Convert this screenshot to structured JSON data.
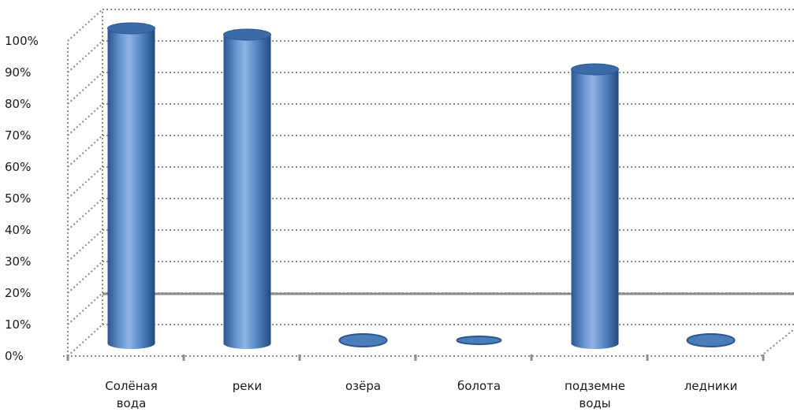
{
  "chart_data": {
    "type": "bar",
    "style": "3d-cylinder",
    "categories": [
      "Солёная вода",
      "реки",
      "озёра",
      "болота",
      "подземне воды",
      "ледники"
    ],
    "category_lines": [
      [
        "Солёная",
        "вода"
      ],
      [
        "реки"
      ],
      [
        "озёра"
      ],
      [
        "болота"
      ],
      [
        "подземне",
        "воды"
      ],
      [
        "ледники"
      ]
    ],
    "values": [
      100,
      98,
      1,
      0,
      87,
      1
    ],
    "ylim": [
      0,
      100
    ],
    "yticks": [
      0,
      10,
      20,
      30,
      40,
      50,
      60,
      70,
      80,
      90,
      100
    ],
    "ytick_labels": [
      "0%",
      "10%",
      "20%",
      "30%",
      "40%",
      "50%",
      "60%",
      "70%",
      "80%",
      "90%",
      "100%"
    ],
    "title": "",
    "xlabel": "",
    "ylabel": "",
    "grid": true,
    "legend": "none",
    "colors": {
      "bar": "#4a7ebb",
      "bar_dark": "#2c5592",
      "bar_light": "#8fb3e3",
      "bar_top": "#3b6aa8",
      "grid": "#8c8c8c",
      "axis": "#8c8c8c",
      "reference_line": "#8c8c8c"
    }
  }
}
